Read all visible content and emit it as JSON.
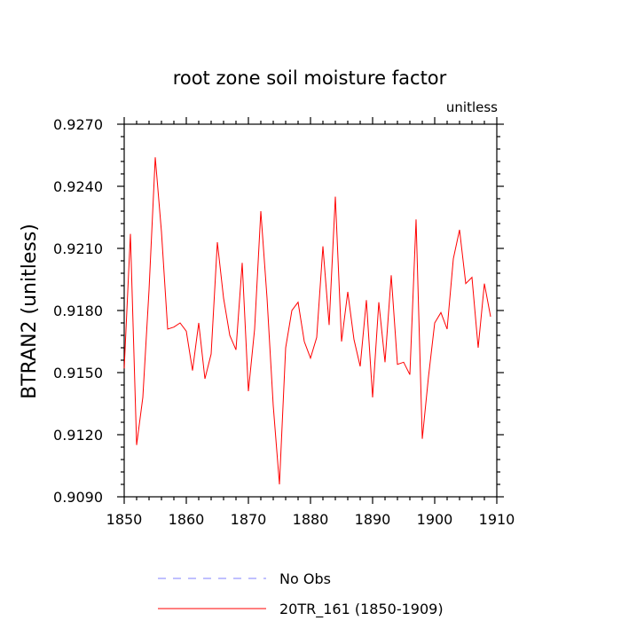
{
  "chart_data": {
    "type": "line",
    "title": "root zone soil moisture factor",
    "units_label": "unitless",
    "xlabel": "",
    "ylabel": "BTRAN2  (unitless)",
    "xlim": [
      1850,
      1910
    ],
    "ylim": [
      0.909,
      0.927
    ],
    "x_ticks": [
      1850,
      1860,
      1870,
      1880,
      1890,
      1900,
      1910
    ],
    "x_tick_labels": [
      "1850",
      "1860",
      "1870",
      "1880",
      "1890",
      "1900",
      "1910"
    ],
    "x_minor_step": 2,
    "y_ticks": [
      0.909,
      0.912,
      0.915,
      0.918,
      0.921,
      0.924,
      0.927
    ],
    "y_tick_labels": [
      "0.9090",
      "0.9120",
      "0.9150",
      "0.9180",
      "0.9210",
      "0.9240",
      "0.9270"
    ],
    "y_minor_step": 0.0006,
    "grid": false,
    "legend_position": "bottom",
    "series": [
      {
        "name": "No Obs",
        "color": "#8080ff",
        "style": "dashed",
        "x": [],
        "values": []
      },
      {
        "name": "20TR_161 (1850-1909)",
        "color": "#ff0000",
        "style": "solid",
        "x": [
          1850,
          1851,
          1852,
          1853,
          1854,
          1855,
          1856,
          1857,
          1858,
          1859,
          1860,
          1861,
          1862,
          1863,
          1864,
          1865,
          1866,
          1867,
          1868,
          1869,
          1870,
          1871,
          1872,
          1873,
          1874,
          1875,
          1876,
          1877,
          1878,
          1879,
          1880,
          1881,
          1882,
          1883,
          1884,
          1885,
          1886,
          1887,
          1888,
          1889,
          1890,
          1891,
          1892,
          1893,
          1894,
          1895,
          1896,
          1897,
          1898,
          1899,
          1900,
          1901,
          1902,
          1903,
          1904,
          1905,
          1906,
          1907,
          1908,
          1909
        ],
        "values": [
          0.9152,
          0.9217,
          0.9115,
          0.9138,
          0.919,
          0.9254,
          0.9218,
          0.9171,
          0.9172,
          0.9174,
          0.917,
          0.9151,
          0.9174,
          0.9147,
          0.9159,
          0.9213,
          0.9186,
          0.9168,
          0.9161,
          0.9203,
          0.9141,
          0.9171,
          0.9228,
          0.9186,
          0.9134,
          0.9096,
          0.9162,
          0.918,
          0.9184,
          0.9165,
          0.9157,
          0.9167,
          0.9211,
          0.9173,
          0.9235,
          0.9165,
          0.9189,
          0.9166,
          0.9153,
          0.9185,
          0.9138,
          0.9184,
          0.9155,
          0.9197,
          0.9154,
          0.9155,
          0.9149,
          0.9224,
          0.9118,
          0.9148,
          0.9174,
          0.9179,
          0.9171,
          0.9205,
          0.9219,
          0.9193,
          0.9196,
          0.9162,
          0.9193,
          0.9177
        ]
      }
    ]
  }
}
